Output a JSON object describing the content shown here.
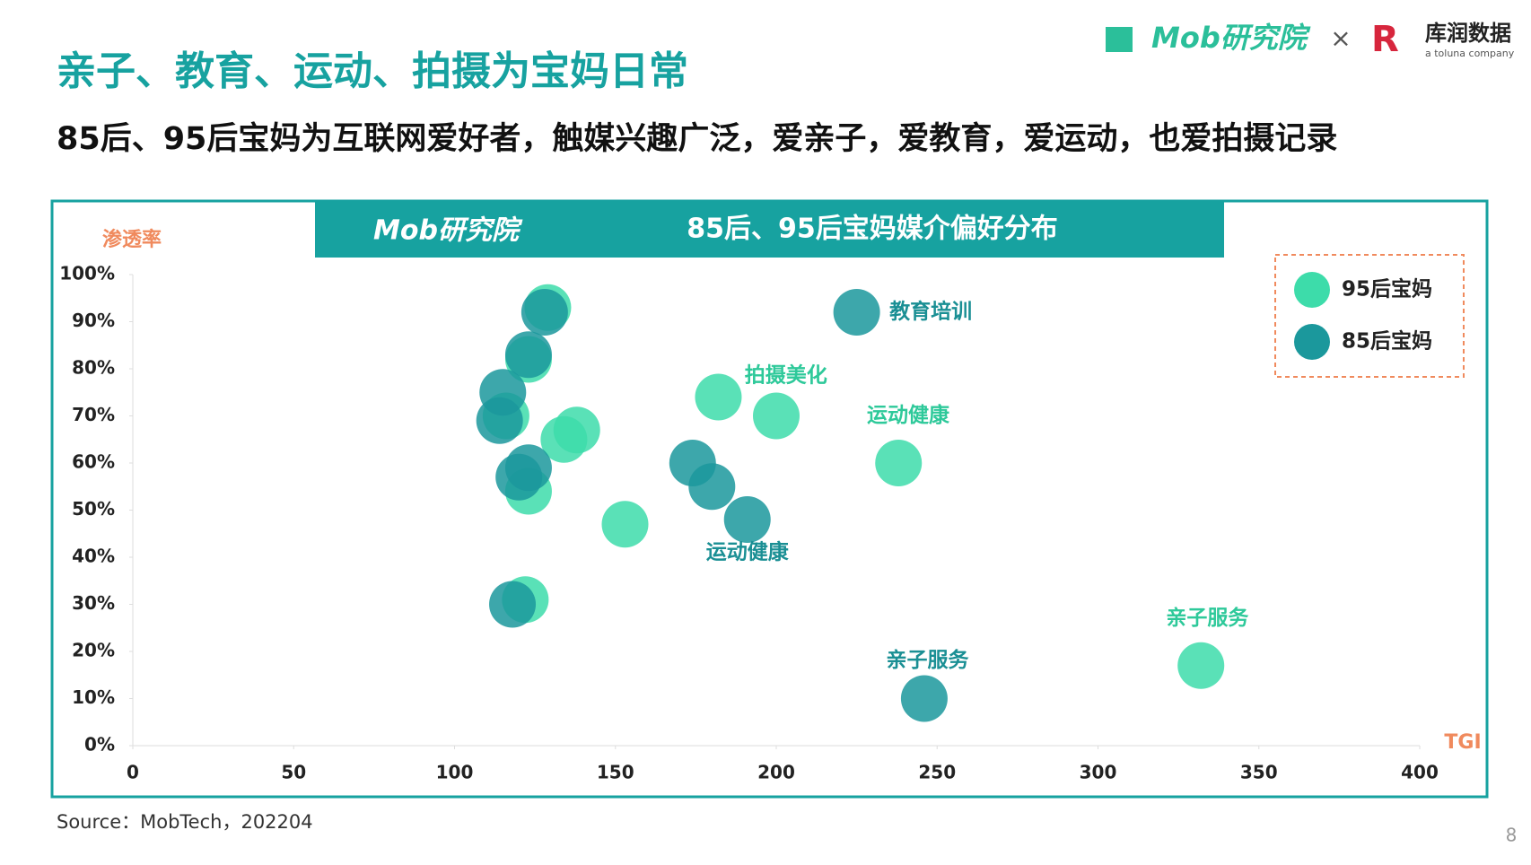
{
  "header": {
    "title": "亲子、教育、运动、拍摄为宝妈日常",
    "subtitle": "85后、95后宝妈为互联网爱好者，触媒兴趣广泛，爱亲子，爱教育，爱运动，也爱拍摄记录",
    "logo_mob": "Mob研究院",
    "separator": "×",
    "logo_kurun": "库润数据",
    "logo_kurun_sub": "a toluna company"
  },
  "chart_data": {
    "type": "scatter",
    "title": "85后、95后宝妈媒介偏好分布",
    "logo": "Mob研究院",
    "xlabel": "TGI",
    "ylabel": "渗透率",
    "xlim": [
      0,
      400
    ],
    "ylim": [
      0,
      100
    ],
    "xticks": [
      0,
      50,
      100,
      150,
      200,
      250,
      300,
      350,
      400
    ],
    "yticks": [
      {
        "value": 0,
        "label": "0%"
      },
      {
        "value": 10,
        "label": "10%"
      },
      {
        "value": 20,
        "label": "20%"
      },
      {
        "value": 30,
        "label": "30%"
      },
      {
        "value": 40,
        "label": "40%"
      },
      {
        "value": 50,
        "label": "50%"
      },
      {
        "value": 60,
        "label": "60%"
      },
      {
        "value": 70,
        "label": "70%"
      },
      {
        "value": 80,
        "label": "80%"
      },
      {
        "value": 90,
        "label": "90%"
      },
      {
        "value": 100,
        "label": "100%"
      }
    ],
    "legend": "upper right",
    "series": [
      {
        "name": "95后宝妈",
        "color": "#3ddcaa",
        "x": [
          129,
          123,
          116,
          138,
          134,
          123,
          122,
          153,
          182,
          200,
          238,
          332
        ],
        "values": [
          93,
          82,
          70,
          67,
          65,
          54,
          31,
          47,
          74,
          70,
          60,
          17
        ]
      },
      {
        "name": "85后宝妈",
        "color": "#1b989c",
        "x": [
          128,
          123,
          115,
          114,
          123,
          120,
          118,
          225,
          174,
          180,
          191,
          246
        ],
        "values": [
          92,
          83,
          75,
          69,
          59,
          57,
          30,
          92,
          60,
          55,
          48,
          10
        ]
      }
    ],
    "annotations": [
      {
        "text": "教育培训",
        "x": 248,
        "y": 92,
        "color": "#1a8f94"
      },
      {
        "text": "拍摄美化",
        "x": 203,
        "y": 78.5,
        "color": "#2ec99a"
      },
      {
        "text": "运动健康",
        "x": 241,
        "y": 70,
        "color": "#2ec99a"
      },
      {
        "text": "运动健康",
        "x": 191,
        "y": 41,
        "color": "#1a8f94"
      },
      {
        "text": "亲子服务",
        "x": 247,
        "y": 18,
        "color": "#1a8f94"
      },
      {
        "text": "亲子服务",
        "x": 334,
        "y": 27,
        "color": "#2ec99a"
      }
    ]
  },
  "footer": {
    "source": "Source：MobTech，202204",
    "page": "8"
  }
}
